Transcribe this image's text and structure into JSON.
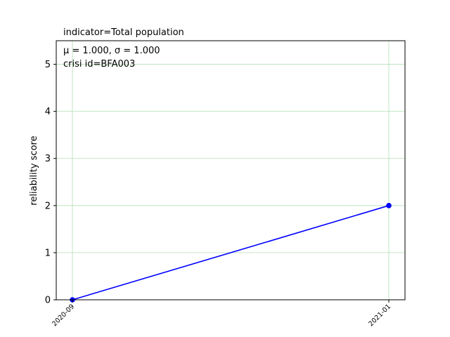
{
  "chart_data": {
    "type": "line",
    "title": "indicator=Total population",
    "xlabel": "",
    "ylabel": "reliability score",
    "x": [
      "2020-09",
      "2021-01"
    ],
    "series": [
      {
        "values": [
          0,
          2
        ],
        "color": "#0000ff"
      }
    ],
    "ylim": [
      0,
      5.5
    ],
    "yticks": [
      0,
      1,
      2,
      3,
      4,
      5
    ],
    "grid": true,
    "grid_color": "#b2dfb2",
    "annotations": {
      "stats": "μ = 1.000,  σ = 1.000",
      "crisis": "crisi id=BFA003"
    }
  }
}
